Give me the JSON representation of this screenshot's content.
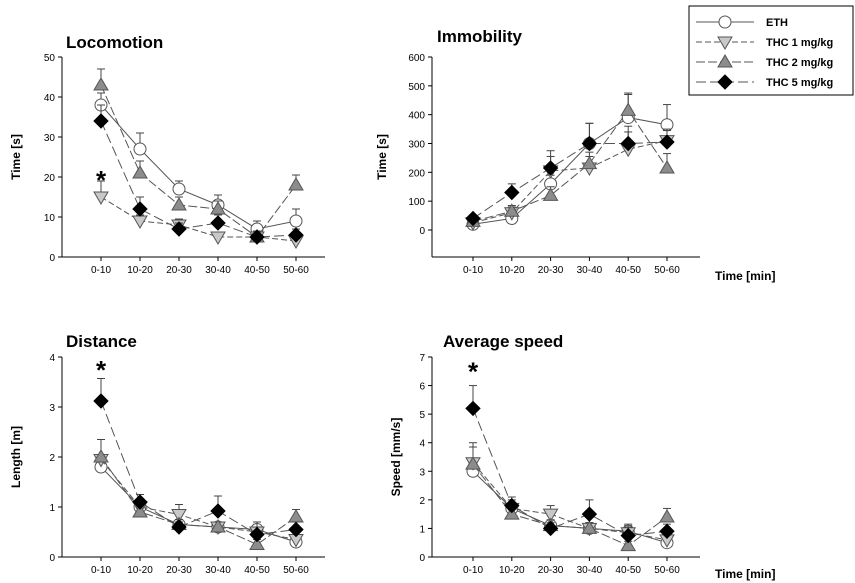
{
  "legend": {
    "placement": "top-right",
    "entries": [
      {
        "label": "ETH",
        "marker": "circle-open"
      },
      {
        "label": "THC 1 mg/kg",
        "marker": "triangle-down"
      },
      {
        "label": "THC 2 mg/kg",
        "marker": "triangle-up"
      },
      {
        "label": "THC 5 mg/kg",
        "marker": "diamond"
      }
    ]
  },
  "colors": {
    "eth_fill": "#ffffff",
    "thc1_fill": "#c8c8c8",
    "thc2_fill": "#8c8c8c",
    "thc5_fill": "#000000",
    "line": "#555555",
    "marker_stroke": "#555555"
  },
  "chart_data": [
    {
      "id": "locomotion",
      "type": "line",
      "title": "Locomotion",
      "ylabel": "Time [s]",
      "xlabel": "",
      "categories": [
        "0-10",
        "10-20",
        "20-30",
        "30-40",
        "40-50",
        "50-60"
      ],
      "ylim": [
        0,
        50
      ],
      "yticks": [
        0,
        10,
        20,
        30,
        40,
        50
      ],
      "grid": false,
      "annotations": [
        {
          "text": "*",
          "category": "0-10",
          "y": 20
        }
      ],
      "series": [
        {
          "name": "ETH",
          "values": [
            38,
            27,
            17,
            13,
            7,
            9
          ],
          "errors": [
            3,
            4,
            2,
            2.5,
            2,
            3
          ]
        },
        {
          "name": "THC 1 mg/kg",
          "values": [
            15,
            9,
            8,
            5,
            5,
            4
          ],
          "errors": [
            4,
            1.5,
            1.5,
            1,
            1,
            1
          ]
        },
        {
          "name": "THC 2 mg/kg",
          "values": [
            43,
            21,
            13,
            12,
            5,
            18
          ],
          "errors": [
            4,
            3,
            2,
            2,
            1.5,
            2.5
          ]
        },
        {
          "name": "THC 5 mg/kg",
          "values": [
            34,
            12,
            7,
            8.5,
            5,
            5.5
          ],
          "errors": [
            4,
            3,
            1.5,
            2,
            1.5,
            1.5
          ]
        }
      ]
    },
    {
      "id": "immobility",
      "type": "line",
      "title": "Immobility",
      "ylabel": "Time [s]",
      "xlabel": "Time [min]",
      "categories": [
        "0-10",
        "10-20",
        "20-30",
        "30-40",
        "40-50",
        "50-60"
      ],
      "ylim": [
        0,
        600
      ],
      "yticks": [
        0,
        100,
        200,
        300,
        400,
        500,
        600
      ],
      "grid": false,
      "annotations": [],
      "series": [
        {
          "name": "ETH",
          "values": [
            20,
            40,
            160,
            300,
            390,
            365
          ],
          "errors": [
            10,
            15,
            30,
            70,
            80,
            70
          ]
        },
        {
          "name": "THC 1 mg/kg",
          "values": [
            25,
            60,
            205,
            215,
            280,
            310
          ],
          "errors": [
            10,
            20,
            50,
            40,
            60,
            40
          ]
        },
        {
          "name": "THC 2 mg/kg",
          "values": [
            30,
            65,
            120,
            230,
            415,
            215
          ],
          "errors": [
            10,
            20,
            30,
            40,
            60,
            50
          ]
        },
        {
          "name": "THC 5 mg/kg",
          "values": [
            40,
            130,
            215,
            300,
            300,
            305
          ],
          "errors": [
            10,
            30,
            60,
            70,
            60,
            40
          ]
        }
      ]
    },
    {
      "id": "distance",
      "type": "line",
      "title": "Distance",
      "ylabel": "Length [m]",
      "xlabel": "",
      "categories": [
        "0-10",
        "10-20",
        "20-30",
        "30-40",
        "40-50",
        "50-60"
      ],
      "ylim": [
        0,
        4
      ],
      "yticks": [
        0,
        1,
        2,
        3,
        4
      ],
      "grid": false,
      "annotations": [
        {
          "text": "*",
          "category": "0-10",
          "y": 3.8
        }
      ],
      "series": [
        {
          "name": "ETH",
          "values": [
            1.8,
            1.0,
            0.65,
            0.6,
            0.55,
            0.3
          ],
          "errors": [
            0.2,
            0.1,
            0.1,
            0.1,
            0.1,
            0.1
          ]
        },
        {
          "name": "THC 1 mg/kg",
          "values": [
            1.95,
            1.0,
            0.85,
            0.6,
            0.5,
            0.35
          ],
          "errors": [
            0.4,
            0.15,
            0.2,
            0.1,
            0.2,
            0.1
          ]
        },
        {
          "name": "THC 2 mg/kg",
          "values": [
            2.0,
            0.9,
            0.65,
            0.6,
            0.25,
            0.8
          ],
          "errors": [
            0.35,
            0.1,
            0.1,
            0.1,
            0.1,
            0.15
          ]
        },
        {
          "name": "THC 5 mg/kg",
          "values": [
            3.12,
            1.1,
            0.6,
            0.92,
            0.45,
            0.55
          ],
          "errors": [
            0.45,
            0.15,
            0.1,
            0.3,
            0.15,
            0.15
          ]
        }
      ]
    },
    {
      "id": "average-speed",
      "type": "line",
      "title": "Average speed",
      "ylabel": "Speed [mm/s]",
      "xlabel": "Time [min]",
      "categories": [
        "0-10",
        "10-20",
        "20-30",
        "30-40",
        "40-50",
        "50-60"
      ],
      "ylim": [
        0,
        7
      ],
      "yticks": [
        0,
        1,
        2,
        3,
        4,
        5,
        6,
        7
      ],
      "grid": false,
      "annotations": [
        {
          "text": "*",
          "category": "0-10",
          "y": 6.6
        }
      ],
      "series": [
        {
          "name": "ETH",
          "values": [
            3.0,
            1.7,
            1.1,
            1.0,
            0.9,
            0.5
          ],
          "errors": [
            0.3,
            0.2,
            0.2,
            0.2,
            0.2,
            0.15
          ]
        },
        {
          "name": "THC 1 mg/kg",
          "values": [
            3.3,
            1.7,
            1.5,
            1.0,
            0.85,
            0.6
          ],
          "errors": [
            0.7,
            0.3,
            0.3,
            0.2,
            0.3,
            0.15
          ]
        },
        {
          "name": "THC 2 mg/kg",
          "values": [
            3.25,
            1.5,
            1.1,
            1.0,
            0.4,
            1.4
          ],
          "errors": [
            0.6,
            0.2,
            0.2,
            0.2,
            0.15,
            0.3
          ]
        },
        {
          "name": "THC 5 mg/kg",
          "values": [
            5.2,
            1.8,
            1.0,
            1.5,
            0.75,
            0.9
          ],
          "errors": [
            0.8,
            0.3,
            0.2,
            0.5,
            0.3,
            0.25
          ]
        }
      ]
    }
  ]
}
